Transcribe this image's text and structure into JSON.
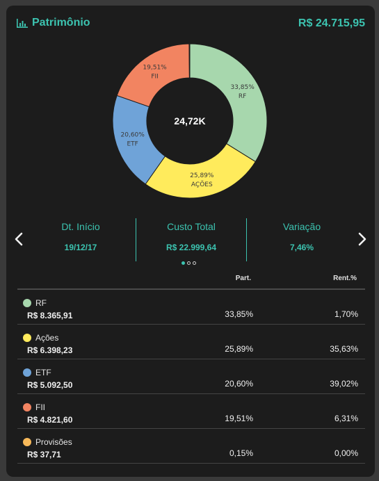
{
  "header": {
    "title": "Patrimônio",
    "title_icon": "bar-chart-icon",
    "total": "R$ 24.715,95"
  },
  "chart_data": {
    "type": "pie",
    "center_label": "24,72K",
    "categories": [
      "RF",
      "AÇÕES",
      "ETF",
      "FII",
      "Provisões"
    ],
    "values": [
      33.85,
      25.89,
      20.6,
      19.51,
      0.15
    ],
    "slice_labels": [
      "33,85%",
      "25,89%",
      "20,60%",
      "19,51%",
      ""
    ],
    "colors": [
      "#a7d7ad",
      "#ffeb5c",
      "#6fa3d8",
      "#f28461",
      "#f7b95a"
    ]
  },
  "carousel": {
    "prev_icon": "chevron-left-icon",
    "next_icon": "chevron-right-icon",
    "kpis": [
      {
        "label": "Dt. Início",
        "value": "19/12/17"
      },
      {
        "label": "Custo Total",
        "value": "R$ 22.999,64"
      },
      {
        "label": "Variação",
        "value": "7,46%"
      }
    ],
    "pages": 3,
    "active_page": 1
  },
  "table": {
    "headers": {
      "part": "Part.",
      "rent": "Rent.%"
    },
    "rows": [
      {
        "name": "RF",
        "value": "R$ 8.365,91",
        "part": "33,85%",
        "rent": "1,70%",
        "color": "#a7d7ad"
      },
      {
        "name": "Ações",
        "value": "R$ 6.398,23",
        "part": "25,89%",
        "rent": "35,63%",
        "color": "#ffeb5c"
      },
      {
        "name": "ETF",
        "value": "R$ 5.092,50",
        "part": "20,60%",
        "rent": "39,02%",
        "color": "#6fa3d8"
      },
      {
        "name": "FII",
        "value": "R$ 4.821,60",
        "part": "19,51%",
        "rent": "6,31%",
        "color": "#f28461"
      },
      {
        "name": "Provisões",
        "value": "R$ 37,71",
        "part": "0,15%",
        "rent": "0,00%",
        "color": "#f7b95a"
      }
    ]
  }
}
